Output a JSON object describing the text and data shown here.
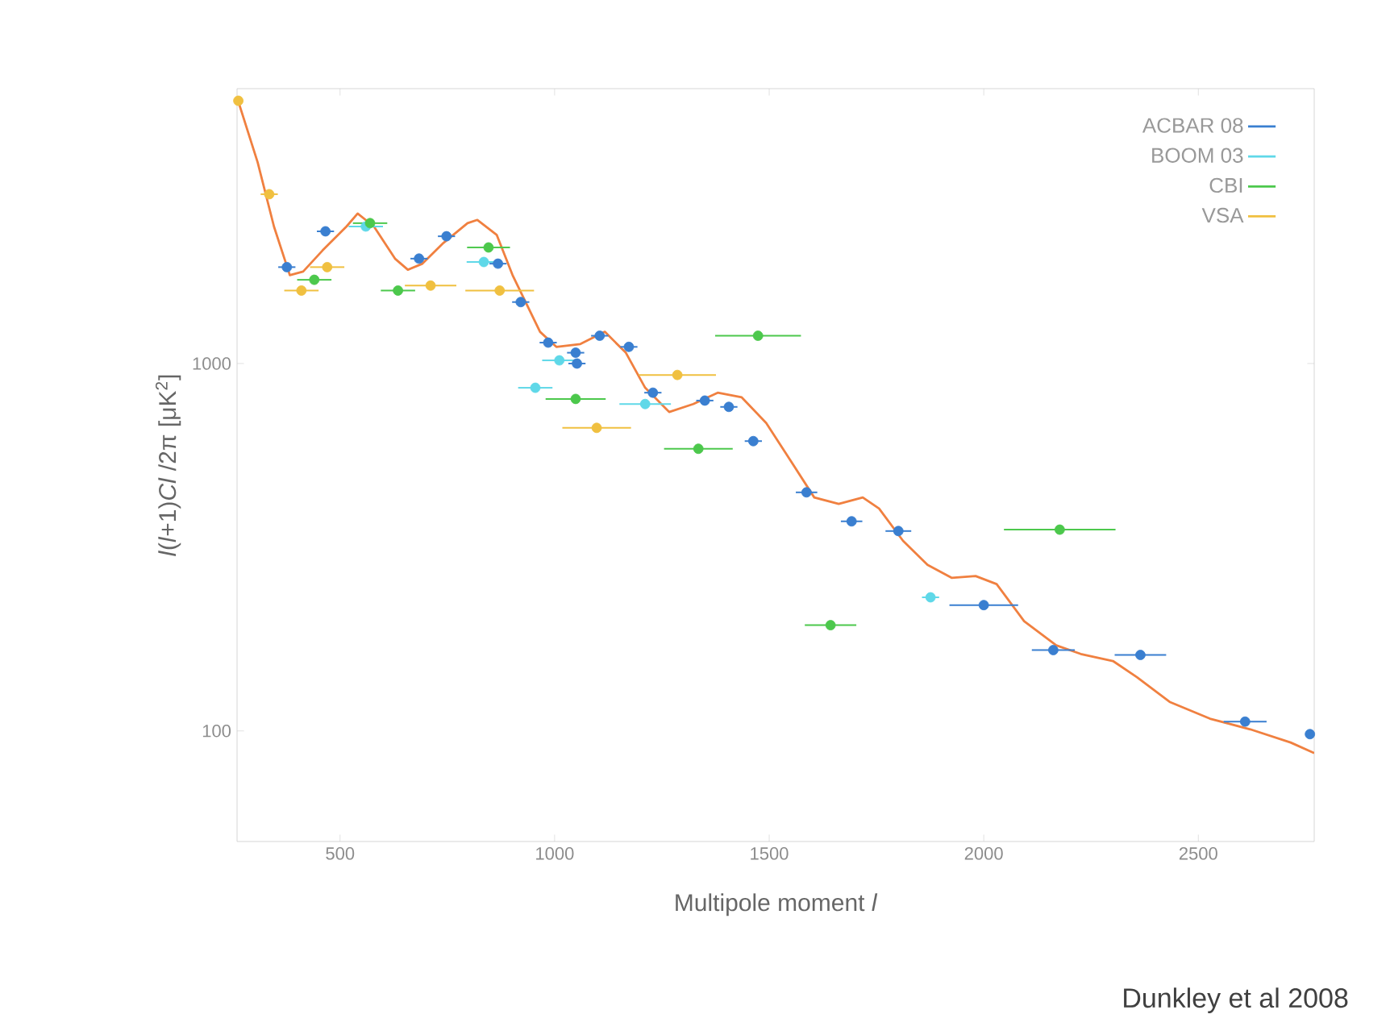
{
  "chart_data": {
    "type": "scatter",
    "xlabel": "Multipole moment  *l*",
    "ylabel": "*l*(*l*+1)*Cl* /2π [μK$^{2}$]",
    "annotations": [
      "Dunkley et al 2008"
    ],
    "log": "y",
    "marker": "circle",
    "legend": "top right",
    "grid": false,
    "xlim": [
      260,
      2770
    ],
    "ylim": [
      50,
      5600
    ],
    "xticks": [
      500,
      1000,
      1500,
      2000,
      2500
    ],
    "yticks": [
      100,
      1000
    ],
    "series": [
      {
        "name": "ACBAR 08",
        "color": "#3a7fd0",
        "x": [
          376,
          466,
          684,
          748,
          868,
          921,
          985,
          1049,
          1052,
          1105,
          1173,
          1229,
          1350,
          1406,
          1463,
          1587,
          1692,
          1801,
          2000,
          2162,
          2365,
          2609,
          2760
        ],
        "values": [
          1830,
          2290,
          1930,
          2220,
          1870,
          1470,
          1140,
          1070,
          1000,
          1190,
          1110,
          833,
          793,
          762,
          615,
          446,
          372,
          350,
          220,
          166,
          161,
          106,
          98
        ],
        "xerrors": [
          20,
          20,
          20,
          20,
          20,
          20,
          20,
          20,
          20,
          20,
          20,
          20,
          20,
          20,
          20,
          25,
          25,
          30,
          80,
          50,
          60,
          50,
          10
        ]
      },
      {
        "name": "BOOM 03",
        "color": "#5fd8e8",
        "x": [
          560,
          835,
          955,
          1011,
          1211,
          1876
        ],
        "values": [
          2360,
          1890,
          859,
          1020,
          776,
          231
        ],
        "xerrors": [
          40,
          40,
          40,
          40,
          60,
          20
        ]
      },
      {
        "name": "CBI",
        "color": "#4cc84c",
        "x": [
          440,
          570,
          635,
          846,
          1049,
          1335,
          1474,
          1643,
          2177
        ],
        "values": [
          1690,
          2410,
          1580,
          2070,
          801,
          586,
          1190,
          194,
          353
        ],
        "xerrors": [
          40,
          40,
          40,
          50,
          70,
          80,
          100,
          60,
          130
        ]
      },
      {
        "name": "VSA",
        "color": "#f0c040",
        "x": [
          263,
          335,
          410,
          470,
          711,
          872,
          1098,
          1286
        ],
        "values": [
          5190,
          2890,
          1580,
          1830,
          1630,
          1580,
          668,
          931
        ],
        "xerrors": [
          10,
          20,
          40,
          40,
          60,
          80,
          80,
          90
        ]
      },
      {
        "type": "line",
        "marker": "none",
        "color": "#f08040",
        "x": [
          260,
          308,
          346,
          383,
          414,
          459,
          515,
          541,
          579,
          628,
          658,
          692,
          741,
          797,
          820,
          865,
          902,
          966,
          1004,
          1060,
          1117,
          1166,
          1211,
          1267,
          1323,
          1380,
          1436,
          1493,
          1549,
          1605,
          1662,
          1718,
          1756,
          1812,
          1869,
          1925,
          1981,
          2030,
          2094,
          2169,
          2226,
          2301,
          2357,
          2433,
          2527,
          2621,
          2715,
          2770
        ],
        "values": [
          5300,
          3530,
          2360,
          1740,
          1780,
          2030,
          2360,
          2560,
          2360,
          1930,
          1800,
          1870,
          2130,
          2410,
          2460,
          2240,
          1740,
          1220,
          1110,
          1130,
          1220,
          1070,
          859,
          738,
          776,
          833,
          809,
          689,
          546,
          432,
          415,
          432,
          403,
          329,
          283,
          261,
          264,
          251,
          199,
          171,
          162,
          155,
          140,
          120,
          108,
          101,
          93,
          87
        ]
      }
    ]
  }
}
